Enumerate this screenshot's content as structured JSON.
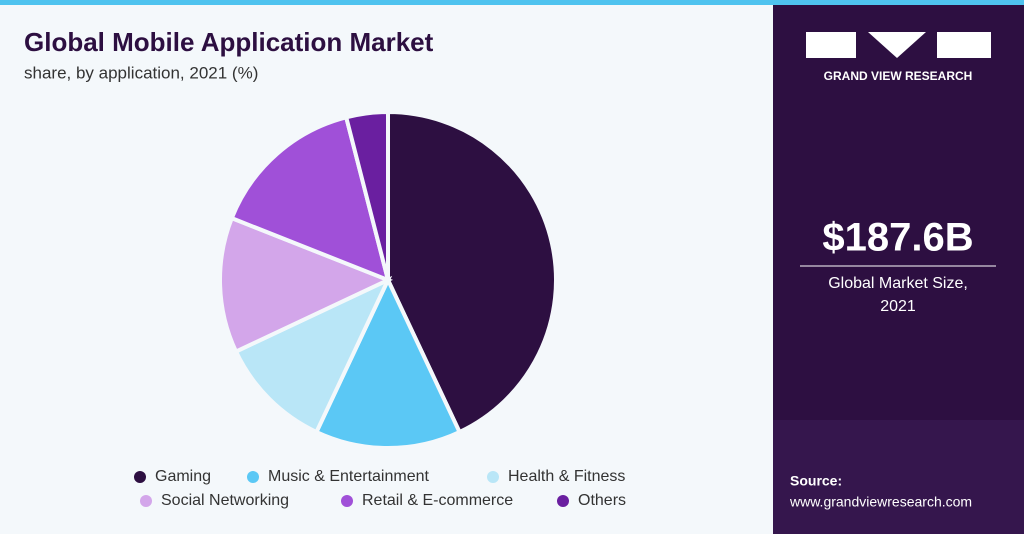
{
  "chart_data": {
    "type": "pie",
    "title": "Global Mobile Application Market",
    "subtitle": "share, by application, 2021 (%)",
    "categories": [
      "Gaming",
      "Music & Entertainment",
      "Health & Fitness",
      "Social Networking",
      "Retail & E-commerce",
      "Others"
    ],
    "values": [
      43,
      14,
      11,
      13,
      15,
      4
    ],
    "colors": [
      "#2d0f41",
      "#5bc8f5",
      "#b9e6f7",
      "#d3a6ea",
      "#a050d8",
      "#6a1fa0"
    ]
  },
  "sidebar": {
    "brand": "GRAND VIEW RESEARCH",
    "market_size": "$187.6B",
    "market_size_label": "Global Market Size, 2021",
    "source_label": "Source:",
    "source_url": "www.grandviewresearch.com"
  }
}
